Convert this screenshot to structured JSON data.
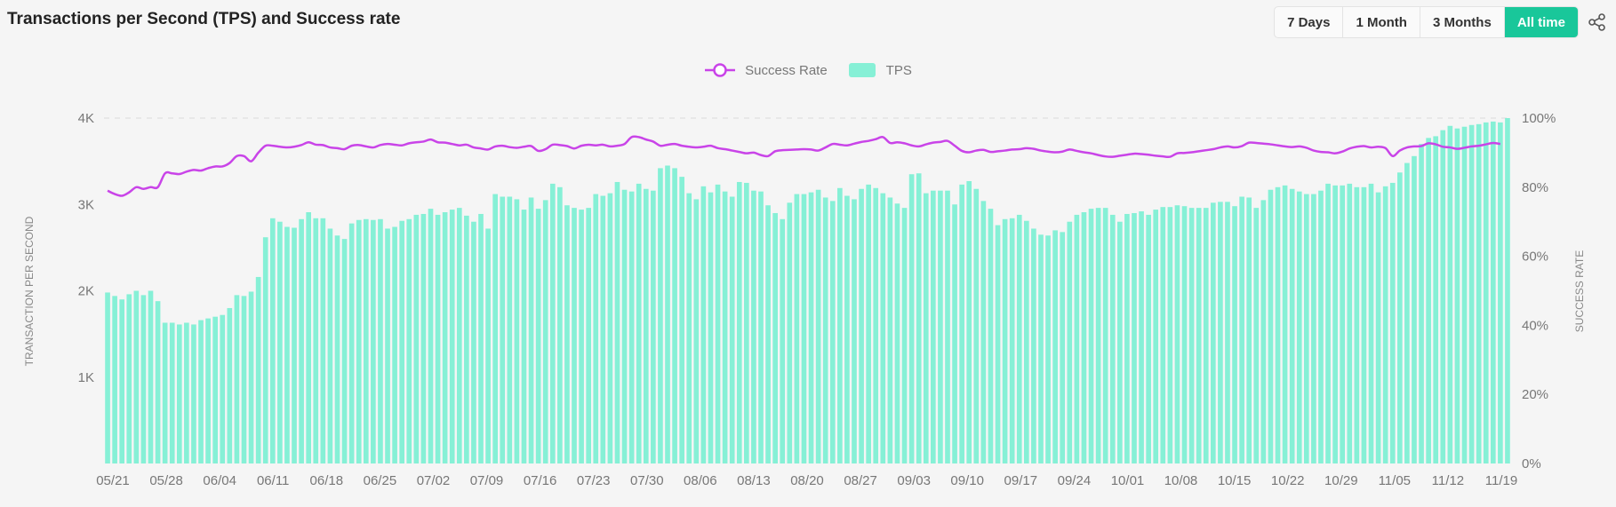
{
  "header": {
    "title": "Transactions per Second (TPS) and Success rate",
    "ranges": [
      "7 Days",
      "1 Month",
      "3 Months",
      "All time"
    ],
    "active_range": "All time"
  },
  "legend": {
    "success_label": "Success Rate",
    "tps_label": "TPS"
  },
  "colors": {
    "bar": "#86f0d6",
    "line": "#c944e8",
    "active": "#19c79a"
  },
  "chart_data": {
    "type": "bar",
    "title": "Transactions per Second (TPS) and Success rate",
    "ylabel": "TRANSACTION PER SECOND",
    "y2label": "SUCCESS RATE",
    "ylim": [
      0,
      4000
    ],
    "y2lim": [
      0,
      100
    ],
    "y_ticks": [
      "1K",
      "2K",
      "3K",
      "4K"
    ],
    "y2_ticks": [
      "0%",
      "20%",
      "40%",
      "60%",
      "80%",
      "100%"
    ],
    "x_tick_labels": [
      "05/21",
      "05/28",
      "06/04",
      "06/11",
      "06/18",
      "06/25",
      "07/02",
      "07/09",
      "07/16",
      "07/23",
      "07/30",
      "08/06",
      "08/13",
      "08/20",
      "08/27",
      "09/03",
      "09/10",
      "09/17",
      "09/24",
      "10/01",
      "10/08",
      "10/15",
      "10/22",
      "10/29",
      "11/05",
      "11/12",
      "11/19"
    ],
    "series": [
      {
        "name": "TPS",
        "type": "bar",
        "values": [
          1980,
          1940,
          1900,
          1960,
          2000,
          1950,
          2000,
          1880,
          1630,
          1630,
          1610,
          1630,
          1610,
          1660,
          1680,
          1700,
          1720,
          1800,
          1950,
          1940,
          1990,
          2160,
          2620,
          2840,
          2800,
          2740,
          2730,
          2830,
          2910,
          2840,
          2840,
          2720,
          2640,
          2600,
          2780,
          2820,
          2830,
          2820,
          2830,
          2720,
          2740,
          2810,
          2830,
          2880,
          2890,
          2950,
          2880,
          2910,
          2940,
          2960,
          2870,
          2800,
          2890,
          2720,
          3120,
          3090,
          3090,
          3060,
          2940,
          3080,
          2950,
          3050,
          3240,
          3200,
          2990,
          2960,
          2940,
          2960,
          3120,
          3100,
          3130,
          3260,
          3170,
          3150,
          3240,
          3180,
          3160,
          3420,
          3450,
          3420,
          3320,
          3130,
          3060,
          3210,
          3140,
          3230,
          3150,
          3090,
          3260,
          3250,
          3160,
          3150,
          2990,
          2900,
          2830,
          3020,
          3120,
          3120,
          3140,
          3170,
          3080,
          3040,
          3190,
          3100,
          3060,
          3180,
          3230,
          3190,
          3130,
          3080,
          3010,
          2960,
          3350,
          3360,
          3130,
          3160,
          3160,
          3160,
          3000,
          3230,
          3270,
          3180,
          3040,
          2950,
          2760,
          2830,
          2840,
          2880,
          2810,
          2720,
          2650,
          2640,
          2700,
          2680,
          2800,
          2880,
          2910,
          2950,
          2960,
          2960,
          2880,
          2800,
          2890,
          2900,
          2920,
          2880,
          2940,
          2970,
          2970,
          2990,
          2980,
          2960,
          2960,
          2960,
          3020,
          3030,
          3030,
          2980,
          3090,
          3080,
          2960,
          3050,
          3170,
          3200,
          3220,
          3180,
          3150,
          3120,
          3120,
          3160,
          3240,
          3220,
          3220,
          3240,
          3200,
          3200,
          3240,
          3140,
          3210,
          3250,
          3370,
          3480,
          3560,
          3700,
          3770,
          3790,
          3860,
          3910,
          3880,
          3900,
          3920,
          3930,
          3950,
          3960,
          3950,
          4000
        ]
      },
      {
        "name": "Success Rate",
        "type": "line",
        "values": [
          79,
          78,
          77.5,
          78.5,
          80,
          79.5,
          80,
          80,
          84,
          84,
          83.8,
          84.5,
          85,
          84.8,
          85.5,
          86,
          86,
          87,
          89,
          89,
          87.5,
          90,
          92,
          92,
          91.7,
          91.5,
          91.7,
          92.2,
          93,
          92.3,
          92.2,
          91.5,
          91.3,
          91,
          92,
          92.2,
          91.8,
          91.5,
          92.2,
          92.5,
          92.3,
          92.1,
          92.7,
          93,
          93.2,
          93.8,
          93,
          92.9,
          92.5,
          92.1,
          92.3,
          91.5,
          91.2,
          90.9,
          91.8,
          92,
          91.6,
          91.4,
          91.7,
          91.9,
          90.5,
          91,
          92.3,
          92.2,
          91.9,
          91.2,
          92,
          92.3,
          92.1,
          92.3,
          91.8,
          92,
          92.5,
          94.5,
          94.5,
          93.8,
          93.2,
          92,
          92.3,
          92.5,
          92,
          91.7,
          91.5,
          91.7,
          92,
          91.3,
          91,
          90.6,
          90.2,
          89.8,
          90,
          89.3,
          89,
          90.4,
          90.7,
          90.8,
          90.9,
          91,
          90.9,
          90.6,
          91.5,
          92.5,
          92.3,
          92.1,
          92.6,
          93.1,
          93.4,
          93.9,
          94.5,
          92.8,
          93,
          92.7,
          92.1,
          91.8,
          92.4,
          92.9,
          93.1,
          93.4,
          92,
          90.5,
          90.1,
          90.6,
          90.8,
          90.2,
          90.4,
          90.6,
          90.9,
          91,
          91.3,
          91.1,
          90.6,
          90.3,
          90.1,
          90.3,
          90.9,
          90.5,
          90.1,
          89.8,
          89.3,
          88.9,
          88.8,
          89.1,
          89.4,
          89.7,
          89.6,
          89.4,
          89.1,
          88.9,
          88.8,
          89.8,
          89.9,
          90.1,
          90.4,
          90.7,
          91,
          91.5,
          91.8,
          91.5,
          91.9,
          92.9,
          92.8,
          92.6,
          92.4,
          92.1,
          91.8,
          91.6,
          91.8,
          91.4,
          90.6,
          90.2,
          90.1,
          89.8,
          90.3,
          91.2,
          91.7,
          91.9,
          91.5,
          91.7,
          91.3,
          89,
          90.6,
          91.5,
          91.8,
          91.9,
          92.7,
          92.4,
          91.7,
          91.5,
          91.1,
          91.4,
          91.8,
          92,
          92.4,
          92.8,
          92.5
        ]
      }
    ],
    "legend_position": "top-center",
    "grid": true
  }
}
